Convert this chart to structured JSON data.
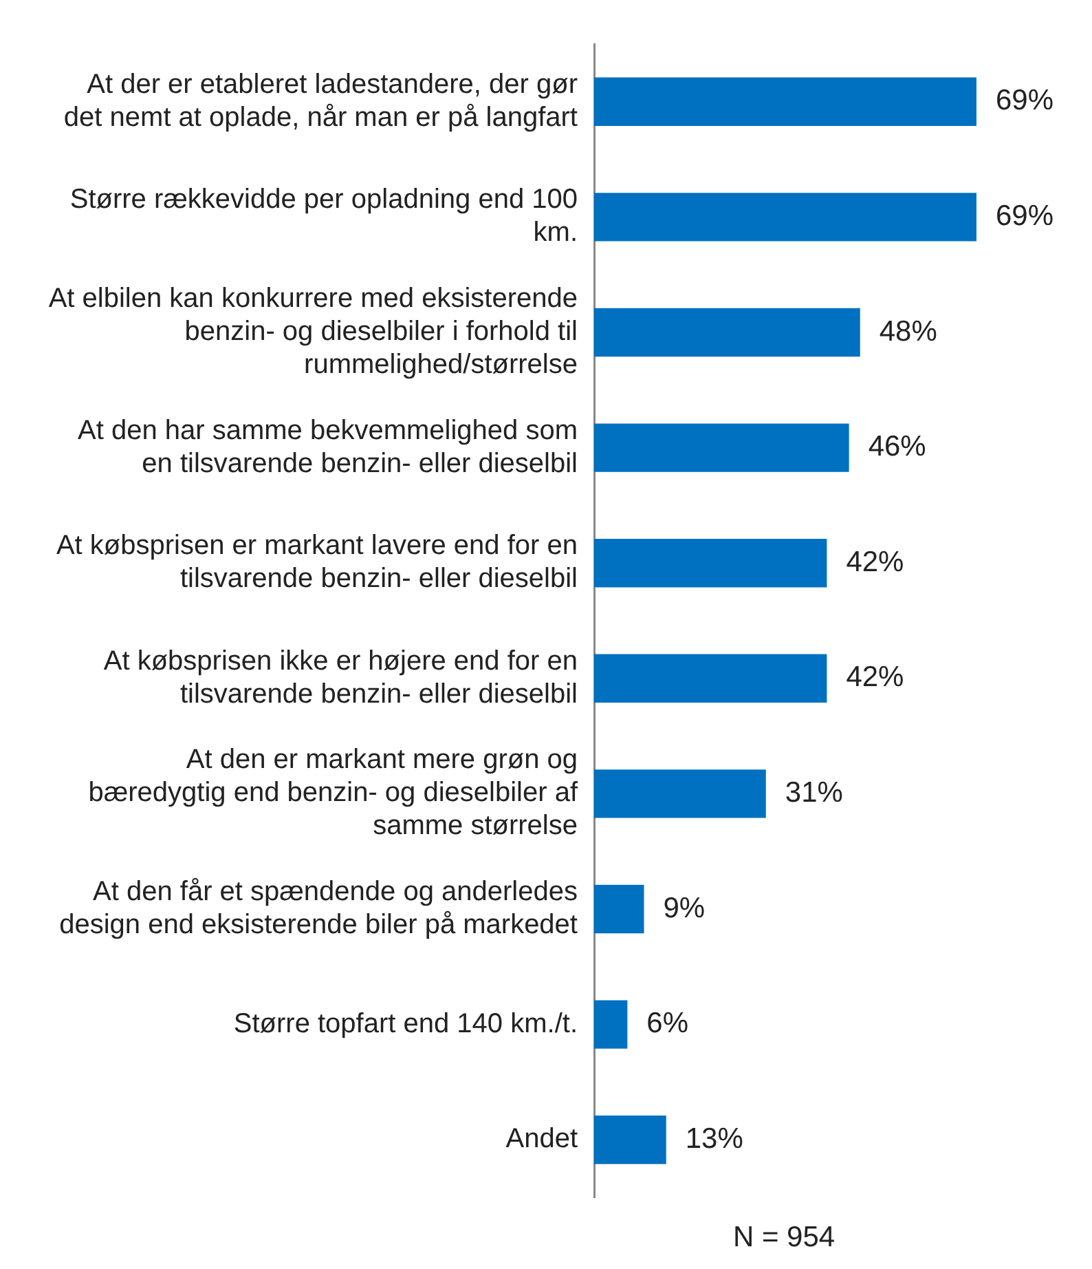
{
  "chart_data": {
    "type": "bar",
    "orientation": "horizontal",
    "categories": [
      "At der er etableret ladestandere, der gør det nemt at oplade, når man er på langfart",
      "Større rækkevidde per opladning end 100 km.",
      "At elbilen kan konkurrere med eksisterende benzin- og dieselbiler i forhold til rummelighed/størrelse",
      "At den har samme bekvemmelighed som en tilsvarende benzin- eller dieselbil",
      "At købsprisen er markant lavere end for en tilsvarende benzin- eller dieselbil",
      "At købsprisen ikke er højere end for en tilsvarende benzin- eller dieselbil",
      "At den er markant mere grøn og bæredygtig end benzin- og dieselbiler af samme størrelse",
      "At den får et spændende og anderledes design end eksisterende biler på markedet",
      "Større topfart end 140 km./t.",
      "Andet"
    ],
    "values": [
      69,
      69,
      48,
      46,
      42,
      42,
      31,
      9,
      6,
      13
    ],
    "value_labels": [
      "69%",
      "69%",
      "48%",
      "46%",
      "42%",
      "42%",
      "31%",
      "9%",
      "6%",
      "13%"
    ],
    "color": "#0070c0",
    "tick_labels": "y",
    "legend": false,
    "annotations": [
      "N = 954"
    ]
  }
}
